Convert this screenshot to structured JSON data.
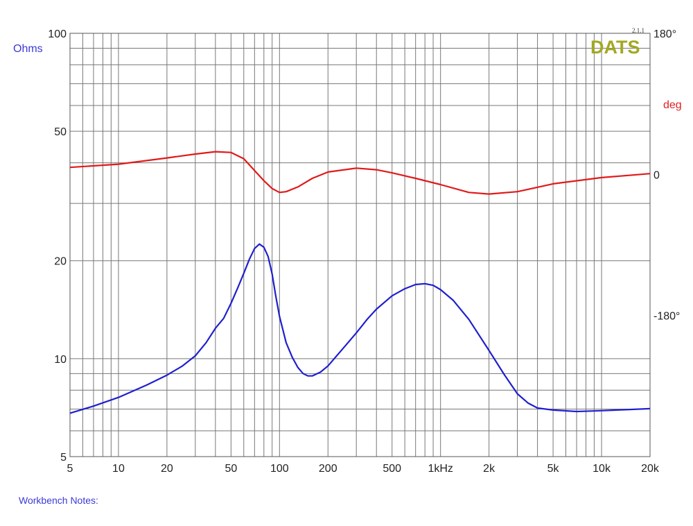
{
  "brand": {
    "logo_text": "DATS",
    "version": "2.1.1",
    "logo_color": "#a3a822"
  },
  "notes_label": "Workbench Notes:",
  "chart_data": {
    "type": "line",
    "xscale": "log",
    "xlim": [
      5,
      20000
    ],
    "x_ticks": [
      {
        "value": 5,
        "label": "5"
      },
      {
        "value": 10,
        "label": "10"
      },
      {
        "value": 20,
        "label": "20"
      },
      {
        "value": 50,
        "label": "50"
      },
      {
        "value": 100,
        "label": "100"
      },
      {
        "value": 200,
        "label": "200"
      },
      {
        "value": 500,
        "label": "500"
      },
      {
        "value": 1000,
        "label": "1kHz"
      },
      {
        "value": 2000,
        "label": "2k"
      },
      {
        "value": 5000,
        "label": "5k"
      },
      {
        "value": 10000,
        "label": "10k"
      },
      {
        "value": 20000,
        "label": "20k"
      }
    ],
    "y_left": {
      "label": "Ohms",
      "scale": "log",
      "lim": [
        5,
        100
      ],
      "ticks": [
        {
          "value": 5,
          "label": "5"
        },
        {
          "value": 10,
          "label": "10"
        },
        {
          "value": 20,
          "label": "20"
        },
        {
          "value": 50,
          "label": "50"
        },
        {
          "value": 100,
          "label": "100"
        }
      ],
      "color": "#2b2bd6"
    },
    "y_right": {
      "label": "deg",
      "lim": [
        -360,
        180
      ],
      "ticks": [
        {
          "value": 180,
          "label": "180°"
        },
        {
          "value": 0,
          "label": "0"
        },
        {
          "value": -180,
          "label": "-180°"
        }
      ],
      "color": "#e02020"
    },
    "grid": true,
    "series": [
      {
        "name": "Ohms",
        "axis": "left",
        "color": "#1f1fd0",
        "points": [
          [
            5,
            6.8
          ],
          [
            7,
            7.15
          ],
          [
            10,
            7.6
          ],
          [
            15,
            8.3
          ],
          [
            20,
            8.9
          ],
          [
            25,
            9.5
          ],
          [
            30,
            10.2
          ],
          [
            35,
            11.2
          ],
          [
            40,
            12.4
          ],
          [
            45,
            13.3
          ],
          [
            50,
            14.8
          ],
          [
            55,
            16.5
          ],
          [
            60,
            18.3
          ],
          [
            65,
            20.2
          ],
          [
            70,
            21.8
          ],
          [
            75,
            22.5
          ],
          [
            80,
            22.0
          ],
          [
            85,
            20.6
          ],
          [
            90,
            18.2
          ],
          [
            95,
            15.5
          ],
          [
            100,
            13.5
          ],
          [
            110,
            11.2
          ],
          [
            120,
            10.1
          ],
          [
            130,
            9.4
          ],
          [
            140,
            9.0
          ],
          [
            150,
            8.85
          ],
          [
            160,
            8.85
          ],
          [
            180,
            9.1
          ],
          [
            200,
            9.5
          ],
          [
            250,
            10.8
          ],
          [
            300,
            12.0
          ],
          [
            350,
            13.2
          ],
          [
            400,
            14.2
          ],
          [
            500,
            15.6
          ],
          [
            600,
            16.4
          ],
          [
            700,
            16.9
          ],
          [
            800,
            17.0
          ],
          [
            900,
            16.8
          ],
          [
            1000,
            16.3
          ],
          [
            1200,
            15.1
          ],
          [
            1500,
            13.2
          ],
          [
            2000,
            10.6
          ],
          [
            2500,
            8.9
          ],
          [
            3000,
            7.8
          ],
          [
            3500,
            7.3
          ],
          [
            4000,
            7.05
          ],
          [
            5000,
            6.95
          ],
          [
            7000,
            6.88
          ],
          [
            10000,
            6.92
          ],
          [
            15000,
            6.98
          ],
          [
            20000,
            7.02
          ]
        ]
      },
      {
        "name": "deg",
        "axis": "right",
        "color": "#e01a1a",
        "points": [
          [
            5,
            9
          ],
          [
            10,
            13
          ],
          [
            20,
            21
          ],
          [
            30,
            26
          ],
          [
            40,
            29
          ],
          [
            50,
            28
          ],
          [
            60,
            20
          ],
          [
            70,
            5
          ],
          [
            80,
            -8
          ],
          [
            90,
            -18
          ],
          [
            100,
            -23
          ],
          [
            110,
            -22
          ],
          [
            130,
            -16
          ],
          [
            160,
            -5
          ],
          [
            200,
            3
          ],
          [
            300,
            8
          ],
          [
            400,
            6
          ],
          [
            500,
            2
          ],
          [
            700,
            -5
          ],
          [
            1000,
            -13
          ],
          [
            1500,
            -23
          ],
          [
            2000,
            -25
          ],
          [
            3000,
            -22
          ],
          [
            5000,
            -12
          ],
          [
            10000,
            -4
          ],
          [
            20000,
            1
          ]
        ]
      }
    ]
  }
}
